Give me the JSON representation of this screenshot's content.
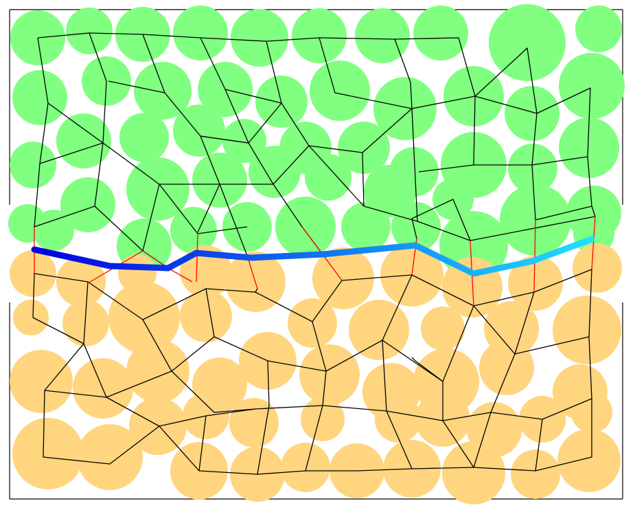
{
  "diagram": {
    "colors": {
      "background": "#ffffff",
      "upper_phase": "#80ff80",
      "lower_phase": "#ffd580",
      "network_edge": "#000000",
      "boundary_edge": "#ff0000",
      "interface_start": "#0000e0",
      "interface_mid": "#1070f0",
      "interface_end": "#20e0ff",
      "frame": "#000000"
    }
  }
}
